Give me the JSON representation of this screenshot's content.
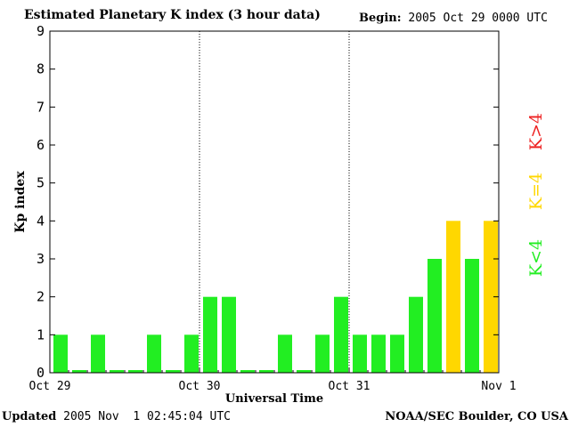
{
  "header": {
    "title": "Estimated Planetary K index (3 hour data)",
    "begin_label": "Begin:",
    "begin_value": "2005 Oct 29 0000 UTC"
  },
  "footer": {
    "updated_label": "Updated",
    "updated_value": "2005 Nov  1 02:45:04 UTC",
    "credit": "NOAA/SEC Boulder, CO USA"
  },
  "colors": {
    "low": "#22ee22",
    "medium": "#ffd700",
    "high": "#ee2222"
  },
  "legend": [
    {
      "label": "K<4",
      "color": "#22ee22"
    },
    {
      "label": "K=4",
      "color": "#ffd700"
    },
    {
      "label": "K>4",
      "color": "#ee2222"
    }
  ],
  "chart_data": {
    "type": "bar",
    "title": "Estimated Planetary K index (3 hour data)",
    "xlabel": "Universal Time",
    "ylabel": "Kp index",
    "ylim": [
      0,
      9
    ],
    "yticks": [
      0,
      1,
      2,
      3,
      4,
      5,
      6,
      7,
      8,
      9
    ],
    "xtick_labels": [
      "Oct 29",
      "Oct 30",
      "Oct 31",
      "Nov 1"
    ],
    "values": [
      1,
      0,
      1,
      0,
      0,
      1,
      0,
      1,
      2,
      2,
      0,
      0,
      1,
      0,
      1,
      2,
      1,
      1,
      1,
      2,
      3,
      4,
      3,
      4
    ],
    "bar_interval_hours": 3,
    "day_separators": [
      "Oct 30",
      "Oct 31"
    ]
  }
}
